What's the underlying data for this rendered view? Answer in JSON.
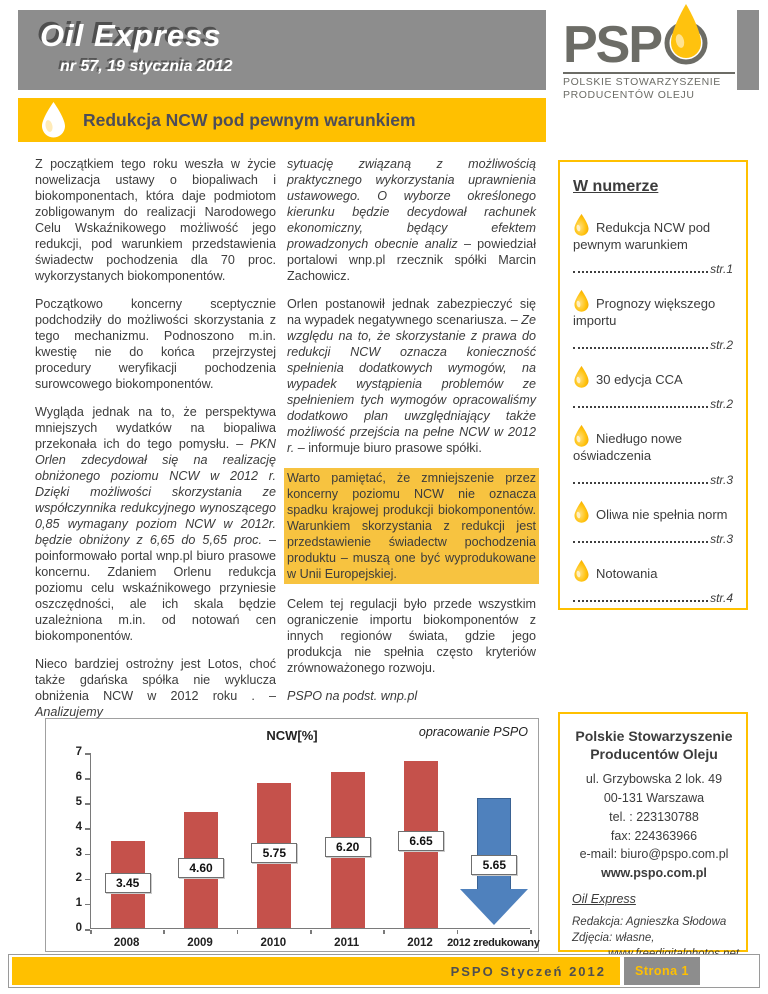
{
  "masthead": {
    "title": "Oil Express",
    "issue": "nr 57, 19 stycznia 2012"
  },
  "logo": {
    "letters": "PSP",
    "caption_line1": "POLSKIE STOWARZYSZENIE",
    "caption_line2": "PRODUCENTÓW OLEJU",
    "drop_color": "#FFC20E",
    "gray": "#6C6C66"
  },
  "article": {
    "title": "Redukcja NCW pod pewnym warunkiem",
    "col1": [
      {
        "runs": [
          {
            "text": "Z początkiem tego roku weszła w życie nowelizacja ustawy o biopaliwach i biokomponentach, która daje podmiotom zobligowanym do realizacji Narodowego Celu Wskaźnikowego możliwość jego redukcji, pod warunkiem przedstawienia świadectw pochodzenia dla 70 proc. wykorzystanych biokomponentów.",
            "italic": false
          }
        ]
      },
      {
        "runs": [
          {
            "text": "Początkowo koncerny sceptycznie podchodziły do możliwości skorzystania z tego mechanizmu. Podnoszono m.in. kwestię nie do końca przejrzystej procedury weryfikacji pochodzenia surowcowego biokomponentów.",
            "italic": false
          }
        ]
      },
      {
        "runs": [
          {
            "text": "Wygląda jednak na to, że perspektywa mniejszych wydatków na biopaliwa przekonała ich do tego pomysłu. – ",
            "italic": false
          },
          {
            "text": "PKN Orlen zdecydował się na realizację obniżonego poziomu NCW w 2012 r. Dzięki możliwości skorzystania ze współczynnika redukcyjnego wynoszącego 0,85 wymagany poziom NCW w 2012r. będzie obniżony z 6,65 do 5,65 proc.",
            "italic": true
          },
          {
            "text": " – poinformowało portal wnp.pl biuro prasowe koncernu. Zdaniem Orlenu redukcja poziomu celu wskaźnikowego przyniesie oszczędności, ale ich skala będzie uzależniona m.in. od notowań cen biokomponentów.",
            "italic": false
          }
        ]
      },
      {
        "runs": [
          {
            "text": "Nieco bardziej ostrożny jest Lotos, choć także gdańska spółka nie wyklucza obniżenia NCW w 2012 roku . – ",
            "italic": false
          },
          {
            "text": "Analizujemy",
            "italic": true
          }
        ]
      }
    ],
    "col2": [
      {
        "runs": [
          {
            "text": "sytuację związaną z możliwością praktycznego wykorzystania uprawnienia ustawowego. O wyborze określonego kierunku będzie decydował rachunek ekonomiczny, będący efektem prowadzonych obecnie analiz",
            "italic": true
          },
          {
            "text": " – powiedział portalowi wnp.pl rzecznik spółki Marcin Zachowicz.",
            "italic": false
          }
        ]
      },
      {
        "runs": [
          {
            "text": "Orlen postanowił jednak zabezpieczyć się na wypadek negatywnego scenariusza. – ",
            "italic": false
          },
          {
            "text": "Ze względu na to, że skorzystanie z prawa do redukcji NCW oznacza konieczność spełnienia dodatkowych wymogów, na wypadek wystąpienia problemów ze spełnieniem tych wymogów opracowaliśmy dodatkowo plan uwzględniający także możliwość przejścia na pełne NCW w 2012 r.",
            "italic": true
          },
          {
            "text": " – informuje biuro prasowe spółki.",
            "italic": false
          }
        ]
      },
      {
        "highlight": true,
        "runs": [
          {
            "text": "Warto pamiętać, że zmniejszenie przez koncerny poziomu NCW nie oznacza spadku krajowej produkcji biokomponentów. Warunkiem skorzystania z redukcji jest przedstawienie świadectw pochodzenia produktu – muszą one być wyprodukowane w Unii Europejskiej.",
            "italic": false
          }
        ]
      },
      {
        "runs": [
          {
            "text": "Celem tej regulacji było przede wszystkim ograniczenie importu biokomponentów z innych regionów świata, gdzie jego produkcja nie spełnia często kryteriów zrównoważonego rozwoju.",
            "italic": false
          }
        ]
      },
      {
        "runs": [
          {
            "text": "PSPO na podst. wnp.pl",
            "italic": true
          }
        ]
      }
    ],
    "highlight_color": "#F7C340"
  },
  "sidebar": {
    "title": "W numerze",
    "items": [
      {
        "label": "Redukcja NCW pod pewnym warunkiem",
        "page": "str.1"
      },
      {
        "label": "Prognozy większego importu",
        "page": "str.2"
      },
      {
        "label": "30 edycja CCA",
        "page": "str.2"
      },
      {
        "label": "Niedługo nowe oświadczenia",
        "page": "str.3"
      },
      {
        "label": "Oliwa nie spełnia norm",
        "page": "str.3"
      },
      {
        "label": "Notowania",
        "page": "str.4"
      }
    ],
    "border_color": "#FFC000"
  },
  "chart_data": {
    "type": "bar",
    "title": "NCW[%]",
    "annotation": "opracowanie PSPO",
    "categories": [
      "2008",
      "2009",
      "2010",
      "2011",
      "2012",
      "2012 zredukowany"
    ],
    "values": [
      3.45,
      4.6,
      5.75,
      6.2,
      6.65,
      5.65
    ],
    "value_labels": [
      "3.45",
      "4.60",
      "5.75",
      "6.20",
      "6.65",
      "5.65"
    ],
    "bar_series_indices": [
      0,
      1,
      2,
      3,
      4
    ],
    "reduced_arrow": {
      "index": 5,
      "label": "5.65",
      "arrow_top": 5.2,
      "arrow_tip": 0.15,
      "head_start": 1.6,
      "color": "#4F81BD"
    },
    "xlabel": "",
    "ylabel": "",
    "ylim": [
      0,
      7
    ],
    "yticks": [
      0,
      1,
      2,
      3,
      4,
      5,
      6,
      7
    ],
    "grid": false,
    "bar_color": "#C5514B",
    "legend": null
  },
  "contact": {
    "org_line1": "Polskie Stowarzyszenie",
    "org_line2": "Producentów Oleju",
    "address_lines": [
      "ul. Grzybowska 2 lok. 49",
      "00-131 Warszawa",
      "tel. : 223130788",
      "fax: 224363966",
      "e-mail: biuro@pspo.com.pl"
    ],
    "website": "www.pspo.com.pl",
    "newsletter_name": "Oil Express",
    "credit_line1": "Redakcja: Agnieszka Słodowa",
    "credit_line2": "Zdjęcia: własne,",
    "credit_line3": "www.freedigitalphotos.net"
  },
  "footer": {
    "issue_label": "PSPO Styczeń 2012",
    "page_label": "Strona 1",
    "accent": "#FFC000"
  }
}
